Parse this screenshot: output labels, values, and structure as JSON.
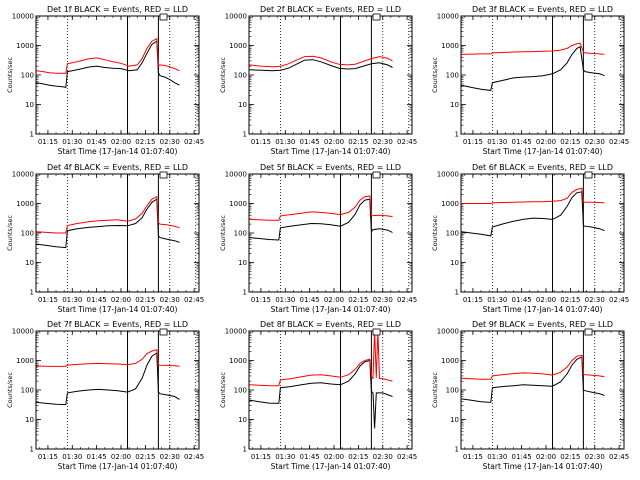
{
  "figure": {
    "start_time_label": "Start Time (17-Jan-14 01:07:40)",
    "ylabel": "Counts/sec"
  },
  "styles": {
    "events_color": "#000000",
    "lld_color": "#ff0000"
  },
  "chart_data": [
    {
      "type": "line",
      "title": "Det 1f BLACK = Events, RED = LLD",
      "xlabel": "Start Time (17-Jan-14 01:07:40)",
      "ylabel": "Counts/sec",
      "yscale": "log",
      "ylim": [
        1,
        10000
      ],
      "xlim": [
        "01:07:40",
        "02:48:00"
      ],
      "xticks": [
        "01:15",
        "01:30",
        "01:45",
        "02:00",
        "02:15",
        "02:30",
        "02:45"
      ],
      "yticks": [
        "1",
        "10",
        "100",
        "1000",
        "10000"
      ],
      "vlines_dotted": [
        "01:27",
        "02:30",
        "02:46"
      ],
      "vlines_solid": [
        "02:04",
        "02:23"
      ],
      "x": [
        "01:08",
        "01:12",
        "01:16",
        "01:20",
        "01:24",
        "01:26",
        "01:27",
        "01:30",
        "01:35",
        "01:40",
        "01:45",
        "01:50",
        "01:55",
        "02:00",
        "02:05",
        "02:10",
        "02:13",
        "02:16",
        "02:19",
        "02:22",
        "02:23",
        "02:24",
        "02:27",
        "02:30",
        "02:33",
        "02:36"
      ],
      "series": [
        {
          "name": "Events",
          "color": "#000000",
          "values": [
            55,
            50,
            45,
            42,
            40,
            38,
            130,
            140,
            160,
            185,
            200,
            180,
            170,
            165,
            140,
            150,
            260,
            550,
            1100,
            1400,
            120,
            95,
            85,
            70,
            55,
            45
          ]
        },
        {
          "name": "LLD",
          "color": "#ff0000",
          "values": [
            140,
            130,
            120,
            115,
            115,
            115,
            240,
            260,
            300,
            350,
            380,
            330,
            280,
            250,
            200,
            220,
            360,
            800,
            1400,
            1700,
            200,
            220,
            210,
            190,
            165,
            140
          ]
        }
      ]
    },
    {
      "type": "line",
      "title": "Det 2f BLACK = Events, RED = LLD",
      "xlabel": "Start Time (17-Jan-14 01:07:40)",
      "ylabel": "Counts/sec",
      "yscale": "log",
      "ylim": [
        1,
        10000
      ],
      "xlim": [
        "01:07:40",
        "02:48:00"
      ],
      "xticks": [
        "01:15",
        "01:30",
        "01:45",
        "02:00",
        "02:15",
        "02:30",
        "02:45"
      ],
      "yticks": [
        "1",
        "10",
        "100",
        "1000",
        "10000"
      ],
      "vlines_dotted": [
        "01:27",
        "02:30",
        "02:46"
      ],
      "vlines_solid": [
        "02:04",
        "02:23"
      ],
      "x": [
        "01:08",
        "01:15",
        "01:22",
        "01:27",
        "01:32",
        "01:38",
        "01:42",
        "01:47",
        "01:52",
        "01:58",
        "02:03",
        "02:08",
        "02:13",
        "02:18",
        "02:23",
        "02:28",
        "02:33",
        "02:36"
      ],
      "series": [
        {
          "name": "Events",
          "color": "#000000",
          "values": [
            150,
            145,
            140,
            145,
            170,
            250,
            320,
            330,
            280,
            210,
            170,
            160,
            165,
            200,
            240,
            260,
            220,
            180
          ]
        },
        {
          "name": "LLD",
          "color": "#ff0000",
          "values": [
            220,
            200,
            190,
            195,
            240,
            340,
            420,
            430,
            380,
            280,
            230,
            220,
            230,
            290,
            360,
            420,
            370,
            300
          ]
        }
      ]
    },
    {
      "type": "line",
      "title": "Det 3f BLACK = Events, RED = LLD",
      "xlabel": "Start Time (17-Jan-14 01:07:40)",
      "ylabel": "Counts/sec",
      "yscale": "log",
      "ylim": [
        1,
        10000
      ],
      "xlim": [
        "01:07:40",
        "02:48:00"
      ],
      "xticks": [
        "01:15",
        "01:30",
        "01:45",
        "02:00",
        "02:15",
        "02:30",
        "02:45"
      ],
      "yticks": [
        "1",
        "10",
        "100",
        "1000",
        "10000"
      ],
      "vlines_dotted": [
        "01:27",
        "02:30",
        "02:46"
      ],
      "vlines_solid": [
        "02:04",
        "02:23"
      ],
      "x": [
        "01:08",
        "01:14",
        "01:20",
        "01:26",
        "01:27",
        "01:33",
        "01:40",
        "01:46",
        "01:52",
        "01:58",
        "02:04",
        "02:09",
        "02:13",
        "02:16",
        "02:19",
        "02:21",
        "02:23",
        "02:24",
        "02:28",
        "02:33",
        "02:36"
      ],
      "series": [
        {
          "name": "Events",
          "color": "#000000",
          "values": [
            45,
            38,
            33,
            30,
            55,
            65,
            80,
            85,
            88,
            95,
            110,
            150,
            260,
            500,
            800,
            900,
            150,
            130,
            120,
            110,
            95
          ]
        },
        {
          "name": "LLD",
          "color": "#ff0000",
          "values": [
            500,
            510,
            520,
            520,
            560,
            580,
            600,
            610,
            620,
            640,
            650,
            700,
            800,
            1000,
            1150,
            1200,
            600,
            560,
            540,
            520,
            500
          ]
        }
      ]
    },
    {
      "type": "line",
      "title": "Det 4f BLACK = Events, RED = LLD",
      "xlabel": "Start Time (17-Jan-14 01:07:40)",
      "ylabel": "Counts/sec",
      "yscale": "log",
      "ylim": [
        1,
        10000
      ],
      "xlim": [
        "01:07:40",
        "02:48:00"
      ],
      "xticks": [
        "01:15",
        "01:30",
        "01:45",
        "02:00",
        "02:15",
        "02:30",
        "02:45"
      ],
      "yticks": [
        "1",
        "10",
        "100",
        "1000",
        "10000"
      ],
      "vlines_dotted": [
        "01:27",
        "02:30",
        "02:46"
      ],
      "vlines_solid": [
        "02:04",
        "02:23"
      ],
      "x": [
        "01:08",
        "01:14",
        "01:20",
        "01:26",
        "01:27",
        "01:33",
        "01:40",
        "01:46",
        "01:52",
        "01:58",
        "02:04",
        "02:09",
        "02:13",
        "02:16",
        "02:19",
        "02:22",
        "02:23",
        "02:24",
        "02:28",
        "02:33",
        "02:36"
      ],
      "series": [
        {
          "name": "Events",
          "color": "#000000",
          "values": [
            42,
            38,
            34,
            32,
            120,
            140,
            155,
            165,
            175,
            180,
            175,
            210,
            330,
            650,
            1100,
            1400,
            80,
            70,
            62,
            55,
            48
          ]
        },
        {
          "name": "LLD",
          "color": "#ff0000",
          "values": [
            110,
            105,
            100,
            100,
            180,
            210,
            240,
            260,
            270,
            280,
            250,
            300,
            460,
            850,
            1400,
            1700,
            220,
            200,
            190,
            170,
            150
          ]
        }
      ]
    },
    {
      "type": "line",
      "title": "Det 5f BLACK = Events, RED = LLD",
      "xlabel": "Start Time (17-Jan-14 01:07:40)",
      "ylabel": "Counts/sec",
      "yscale": "log",
      "ylim": [
        1,
        10000
      ],
      "xlim": [
        "01:07:40",
        "02:48:00"
      ],
      "xticks": [
        "01:15",
        "01:30",
        "01:45",
        "02:00",
        "02:15",
        "02:30",
        "02:45"
      ],
      "yticks": [
        "1",
        "10",
        "100",
        "1000",
        "10000"
      ],
      "vlines_dotted": [
        "01:27",
        "02:30",
        "02:46"
      ],
      "vlines_solid": [
        "02:04",
        "02:23"
      ],
      "x": [
        "01:08",
        "01:14",
        "01:20",
        "01:26",
        "01:27",
        "01:33",
        "01:40",
        "01:46",
        "01:52",
        "01:58",
        "02:04",
        "02:09",
        "02:13",
        "02:16",
        "02:19",
        "02:22",
        "02:23",
        "02:24",
        "02:28",
        "02:33",
        "02:36"
      ],
      "series": [
        {
          "name": "Events",
          "color": "#000000",
          "values": [
            70,
            65,
            60,
            58,
            150,
            170,
            190,
            210,
            205,
            190,
            170,
            230,
            430,
            900,
            1300,
            1400,
            110,
            130,
            140,
            125,
            105
          ]
        },
        {
          "name": "LLD",
          "color": "#ff0000",
          "values": [
            290,
            280,
            270,
            270,
            380,
            420,
            470,
            520,
            500,
            460,
            420,
            500,
            750,
            1300,
            1700,
            1800,
            380,
            390,
            400,
            380,
            360
          ]
        }
      ]
    },
    {
      "type": "line",
      "title": "Det 6f BLACK = Events, RED = LLD",
      "xlabel": "Start Time (17-Jan-14 01:07:40)",
      "ylabel": "Counts/sec",
      "yscale": "log",
      "ylim": [
        1,
        10000
      ],
      "xlim": [
        "01:07:40",
        "02:48:00"
      ],
      "xticks": [
        "01:15",
        "01:30",
        "01:45",
        "02:00",
        "02:15",
        "02:30",
        "02:45"
      ],
      "yticks": [
        "1",
        "10",
        "100",
        "1000",
        "10000"
      ],
      "vlines_dotted": [
        "01:27",
        "02:30",
        "02:46"
      ],
      "vlines_solid": [
        "02:04",
        "02:23"
      ],
      "x": [
        "01:08",
        "01:14",
        "01:20",
        "01:26",
        "01:27",
        "01:33",
        "01:40",
        "01:46",
        "01:52",
        "01:58",
        "02:04",
        "02:09",
        "02:13",
        "02:16",
        "02:19",
        "02:22",
        "02:23",
        "02:24",
        "02:28",
        "02:33",
        "02:36"
      ],
      "series": [
        {
          "name": "Events",
          "color": "#000000",
          "values": [
            110,
            100,
            90,
            80,
            160,
            200,
            250,
            290,
            320,
            310,
            290,
            400,
            800,
            1600,
            2300,
            2500,
            180,
            170,
            160,
            140,
            120
          ]
        },
        {
          "name": "LLD",
          "color": "#ff0000",
          "values": [
            1000,
            1000,
            1000,
            1000,
            1050,
            1080,
            1100,
            1120,
            1150,
            1150,
            1200,
            1250,
            1500,
            2400,
            3000,
            3300,
            1150,
            1100,
            1100,
            1080,
            1050
          ]
        }
      ]
    },
    {
      "type": "line",
      "title": "Det 7f BLACK = Events, RED = LLD",
      "xlabel": "Start Time (17-Jan-14 01:07:40)",
      "ylabel": "Counts/sec",
      "yscale": "log",
      "ylim": [
        1,
        10000
      ],
      "xlim": [
        "01:07:40",
        "02:48:00"
      ],
      "xticks": [
        "01:15",
        "01:30",
        "01:45",
        "02:00",
        "02:15",
        "02:30",
        "02:45"
      ],
      "yticks": [
        "1",
        "10",
        "100",
        "1000",
        "10000"
      ],
      "vlines_dotted": [
        "01:27",
        "02:30",
        "02:46"
      ],
      "vlines_solid": [
        "02:04",
        "02:23"
      ],
      "x": [
        "01:08",
        "01:14",
        "01:20",
        "01:26",
        "01:27",
        "01:33",
        "01:40",
        "01:46",
        "01:52",
        "01:58",
        "02:04",
        "02:09",
        "02:13",
        "02:16",
        "02:19",
        "02:22",
        "02:23",
        "02:24",
        "02:28",
        "02:33",
        "02:36"
      ],
      "series": [
        {
          "name": "Events",
          "color": "#000000",
          "values": [
            38,
            35,
            33,
            32,
            80,
            90,
            100,
            105,
            100,
            95,
            85,
            110,
            250,
            700,
            1400,
            1800,
            85,
            75,
            68,
            60,
            48
          ]
        },
        {
          "name": "LLD",
          "color": "#ff0000",
          "values": [
            650,
            640,
            630,
            630,
            700,
            740,
            780,
            800,
            780,
            760,
            720,
            800,
            1100,
            1700,
            2100,
            2300,
            700,
            690,
            680,
            660,
            640
          ]
        }
      ]
    },
    {
      "type": "line",
      "title": "Det 8f BLACK = Events, RED = LLD",
      "xlabel": "Start Time (17-Jan-14 01:07:40)",
      "ylabel": "Counts/sec",
      "yscale": "log",
      "ylim": [
        1,
        10000
      ],
      "xlim": [
        "01:07:40",
        "02:48:00"
      ],
      "xticks": [
        "01:15",
        "01:30",
        "01:45",
        "02:00",
        "02:15",
        "02:30",
        "02:45"
      ],
      "yticks": [
        "1",
        "10",
        "100",
        "1000",
        "10000"
      ],
      "vlines_dotted": [
        "01:27",
        "02:30",
        "02:46"
      ],
      "vlines_solid": [
        "02:04",
        "02:23"
      ],
      "x": [
        "01:08",
        "01:14",
        "01:20",
        "01:26",
        "01:27",
        "01:33",
        "01:40",
        "01:46",
        "01:52",
        "01:58",
        "02:04",
        "02:09",
        "02:13",
        "02:16",
        "02:19",
        "02:22",
        "02:23",
        "02:24",
        "02:25",
        "02:26",
        "02:27",
        "02:28",
        "02:30",
        "02:33",
        "02:36"
      ],
      "series": [
        {
          "name": "Events",
          "color": "#000000",
          "values": [
            45,
            40,
            36,
            35,
            120,
            130,
            150,
            170,
            175,
            160,
            150,
            200,
            350,
            650,
            900,
            1000,
            90,
            80,
            5,
            80,
            80,
            80,
            80,
            70,
            60
          ]
        },
        {
          "name": "LLD",
          "color": "#ff0000",
          "values": [
            150,
            145,
            140,
            140,
            220,
            240,
            280,
            320,
            330,
            300,
            270,
            330,
            500,
            800,
            1000,
            1100,
            280,
            250,
            10000,
            260,
            10000,
            250,
            240,
            220,
            200
          ]
        }
      ]
    },
    {
      "type": "line",
      "title": "Det 9f BLACK = Events, RED = LLD",
      "xlabel": "Start Time (17-Jan-14 01:07:40)",
      "ylabel": "Counts/sec",
      "yscale": "log",
      "ylim": [
        1,
        10000
      ],
      "xlim": [
        "01:07:40",
        "02:48:00"
      ],
      "xticks": [
        "01:15",
        "01:30",
        "01:45",
        "02:00",
        "02:15",
        "02:30",
        "02:45"
      ],
      "yticks": [
        "1",
        "10",
        "100",
        "1000",
        "10000"
      ],
      "vlines_dotted": [
        "01:27",
        "02:30",
        "02:46"
      ],
      "vlines_solid": [
        "02:04",
        "02:23"
      ],
      "x": [
        "01:08",
        "01:14",
        "01:20",
        "01:26",
        "01:27",
        "01:33",
        "01:40",
        "01:46",
        "01:52",
        "01:58",
        "02:04",
        "02:09",
        "02:13",
        "02:16",
        "02:19",
        "02:22",
        "02:23",
        "02:24",
        "02:28",
        "02:33",
        "02:36"
      ],
      "series": [
        {
          "name": "Events",
          "color": "#000000",
          "values": [
            50,
            45,
            40,
            38,
            120,
            130,
            140,
            150,
            145,
            140,
            135,
            190,
            350,
            700,
            1100,
            1300,
            100,
            95,
            85,
            75,
            65
          ]
        },
        {
          "name": "LLD",
          "color": "#ff0000",
          "values": [
            250,
            240,
            230,
            230,
            300,
            330,
            360,
            380,
            370,
            350,
            320,
            400,
            600,
            1000,
            1400,
            1500,
            340,
            330,
            320,
            300,
            280
          ]
        }
      ]
    }
  ]
}
